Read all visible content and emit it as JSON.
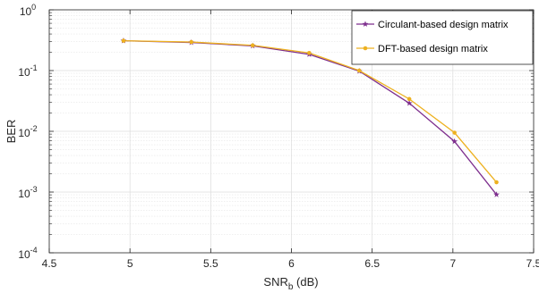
{
  "chart_data": {
    "type": "line",
    "xlabel_main": "SNR",
    "xlabel_sub": "b",
    "xlabel_unit": " (dB)",
    "ylabel": "BER",
    "xlim": [
      4.5,
      7.5
    ],
    "ylim": [
      0.0001,
      1
    ],
    "yscale": "log",
    "grid": true,
    "minor_grid": true,
    "legend_position": "top-right",
    "x_ticks": [
      "4.5",
      "5",
      "5.5",
      "6",
      "6.5",
      "7",
      "7.5"
    ],
    "x_tick_values": [
      4.5,
      5,
      5.5,
      6,
      6.5,
      7,
      7.5
    ],
    "y_tick_exponents": [
      "0",
      "-1",
      "-2",
      "-3",
      "-4"
    ],
    "y_tick_base": "10",
    "series": [
      {
        "name": "Circulant-based design matrix",
        "color": "#7E2F8E",
        "marker": "star",
        "x": [
          4.96,
          5.38,
          5.76,
          6.11,
          6.42,
          6.73,
          7.01,
          7.27
        ],
        "y": [
          0.31,
          0.29,
          0.255,
          0.185,
          0.098,
          0.029,
          0.0068,
          0.00091
        ]
      },
      {
        "name": "DFT-based design matrix",
        "color": "#EDB120",
        "marker": "circle",
        "x": [
          4.96,
          5.38,
          5.76,
          6.11,
          6.42,
          6.73,
          7.01,
          7.27
        ],
        "y": [
          0.31,
          0.295,
          0.26,
          0.195,
          0.1,
          0.034,
          0.0095,
          0.00145
        ]
      }
    ]
  }
}
